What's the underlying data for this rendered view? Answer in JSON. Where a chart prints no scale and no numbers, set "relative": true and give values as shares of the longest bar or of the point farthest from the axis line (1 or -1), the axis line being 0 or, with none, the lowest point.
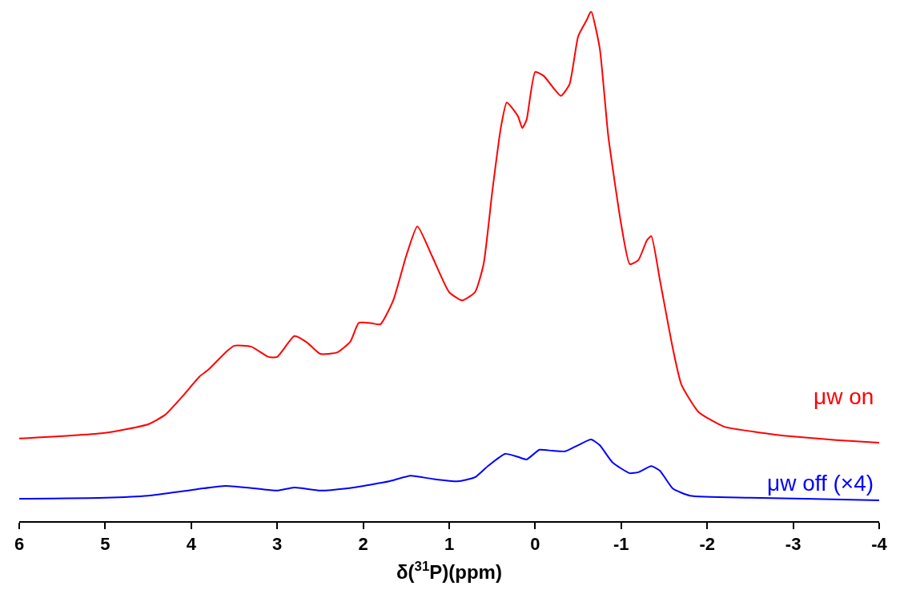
{
  "chart_data": {
    "type": "line",
    "relative": true,
    "xlabel": "δ($^{31}$P)(ppm)",
    "xlim": [
      6,
      -4
    ],
    "xticks": [
      6,
      5,
      4,
      3,
      2,
      1,
      0,
      -1,
      -2,
      -3,
      -4
    ],
    "legend": false,
    "marker": "none",
    "line_style": "solid",
    "series": [
      {
        "name": "μw on",
        "color": "#ff0000",
        "x": [
          6,
          5,
          4.5,
          4.3,
          4.1,
          3.9,
          3.8,
          3.6,
          3.5,
          3.3,
          3.1,
          3.0,
          2.8,
          2.65,
          2.5,
          2.3,
          2.15,
          2.05,
          1.9,
          1.8,
          1.65,
          1.5,
          1.37,
          1.2,
          1.0,
          0.85,
          0.7,
          0.6,
          0.5,
          0.4,
          0.33,
          0.2,
          0.15,
          0.1,
          0.0,
          -0.1,
          -0.2,
          -0.3,
          -0.4,
          -0.5,
          -0.6,
          -0.65,
          -0.75,
          -0.85,
          -1.0,
          -1.1,
          -1.2,
          -1.3,
          -1.35,
          -1.45,
          -1.6,
          -1.7,
          -1.9,
          -2.2,
          -2.6,
          -3.0,
          -3.5,
          -4.0
        ],
        "values": [
          0.162,
          0.173,
          0.19,
          0.209,
          0.245,
          0.284,
          0.297,
          0.331,
          0.344,
          0.342,
          0.322,
          0.322,
          0.363,
          0.35,
          0.328,
          0.331,
          0.352,
          0.389,
          0.388,
          0.386,
          0.433,
          0.52,
          0.578,
          0.52,
          0.449,
          0.433,
          0.449,
          0.504,
          0.645,
          0.771,
          0.821,
          0.794,
          0.771,
          0.787,
          0.881,
          0.873,
          0.852,
          0.834,
          0.857,
          0.951,
          0.983,
          1,
          0.928,
          0.755,
          0.582,
          0.504,
          0.512,
          0.551,
          0.559,
          0.473,
          0.339,
          0.268,
          0.214,
          0.185,
          0.174,
          0.166,
          0.159,
          0.154
        ]
      },
      {
        "name": "μw off (×4)",
        "color": "#0000ff",
        "x": [
          6,
          5,
          4.5,
          4.0,
          3.6,
          3.2,
          3.0,
          2.8,
          2.5,
          2.2,
          1.9,
          1.7,
          1.45,
          1.2,
          0.9,
          0.7,
          0.55,
          0.35,
          0.2,
          0.1,
          -0.05,
          -0.2,
          -0.35,
          -0.5,
          -0.65,
          -0.75,
          -0.9,
          -1.1,
          -1.2,
          -1.35,
          -1.45,
          -1.6,
          -1.8,
          -2.5,
          -4.0
        ],
        "values": [
          0.044,
          0.046,
          0.05,
          0.061,
          0.069,
          0.063,
          0.06,
          0.066,
          0.06,
          0.064,
          0.072,
          0.078,
          0.089,
          0.083,
          0.078,
          0.086,
          0.108,
          0.132,
          0.126,
          0.121,
          0.14,
          0.138,
          0.137,
          0.149,
          0.16,
          0.149,
          0.115,
          0.094,
          0.096,
          0.108,
          0.099,
          0.064,
          0.05,
          0.046,
          0.041
        ]
      }
    ]
  }
}
